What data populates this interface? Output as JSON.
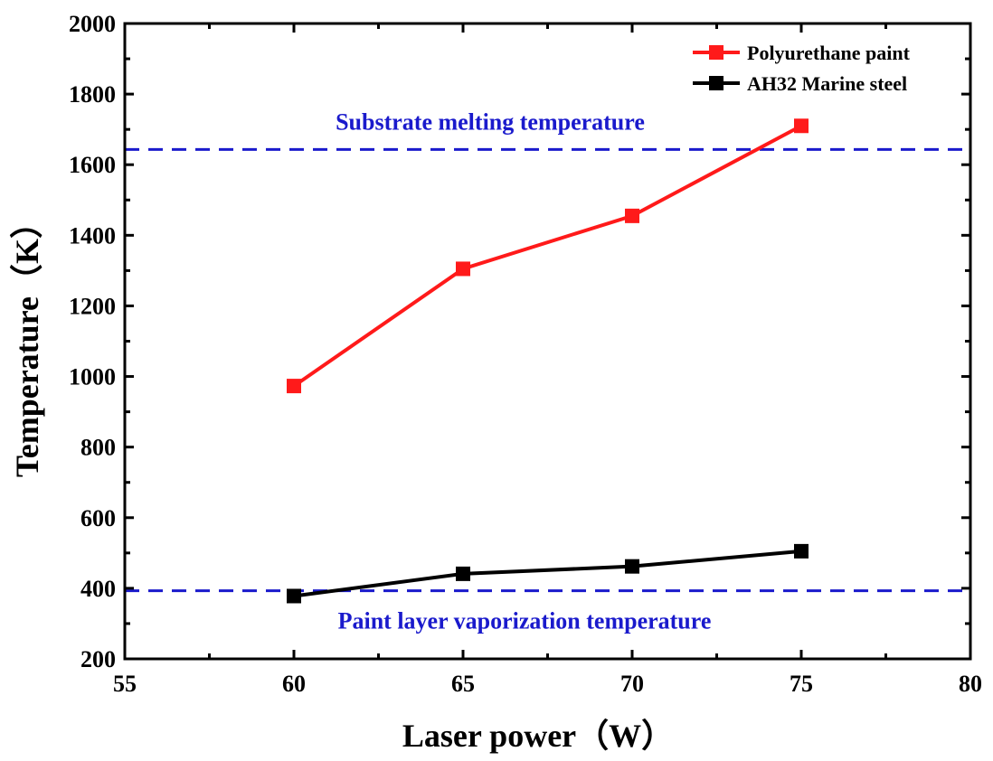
{
  "chart_data": {
    "type": "line",
    "xlabel": "Laser power（W）",
    "ylabel": "Temperature（K）",
    "xlim": [
      55,
      80
    ],
    "ylim": [
      200,
      2000
    ],
    "xticks": [
      55,
      60,
      65,
      70,
      75,
      80
    ],
    "yticks": [
      200,
      400,
      600,
      800,
      1000,
      1200,
      1400,
      1600,
      1800,
      2000
    ],
    "x": [
      60,
      65,
      70,
      75
    ],
    "series": [
      {
        "name": "Polyurethane paint",
        "color": "#ff1a1a",
        "values": [
          973,
          1305,
          1455,
          1710
        ]
      },
      {
        "name": "AH32 Marine steel",
        "color": "#000000",
        "values": [
          378,
          441,
          462,
          505
        ]
      }
    ],
    "reference_lines": [
      {
        "label": "Substrate melting temperature",
        "y": 1643,
        "color": "#1a1acc",
        "style": "dashed"
      },
      {
        "label": "Paint layer vaporization temperature",
        "y": 393,
        "color": "#1a1acc",
        "style": "dashed"
      }
    ],
    "legend_position": "top-right"
  }
}
